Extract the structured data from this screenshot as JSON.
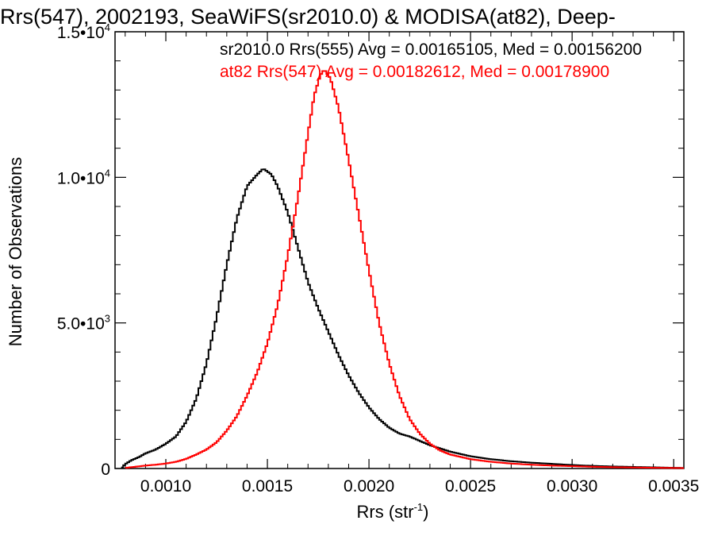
{
  "chart_data": {
    "type": "line",
    "title": "Rrs(547), 2002193, SeaWiFS(sr2010.0) & MODISA(at82), Deep-",
    "xlabel_main": "Rrs (str",
    "xlabel_sup": "-1",
    "xlabel_end": ")",
    "ylabel": "Number of Observations",
    "xlim": [
      0.00075,
      0.00355
    ],
    "ylim": [
      0,
      15000
    ],
    "xticks": [
      {
        "value": 0.001,
        "label": "0.0010"
      },
      {
        "value": 0.0015,
        "label": "0.0015"
      },
      {
        "value": 0.002,
        "label": "0.0020"
      },
      {
        "value": 0.0025,
        "label": "0.0025"
      },
      {
        "value": 0.003,
        "label": "0.0030"
      },
      {
        "value": 0.0035,
        "label": "0.0035"
      }
    ],
    "yticks": [
      {
        "value": 0,
        "mant": "0",
        "exp": ""
      },
      {
        "value": 5000,
        "mant": "5.0•10",
        "exp": "3"
      },
      {
        "value": 10000,
        "mant": "1.0•10",
        "exp": "4"
      },
      {
        "value": 15000,
        "mant": "1.5•10",
        "exp": "4"
      }
    ],
    "series": [
      {
        "name": "sr2010.0 Rrs(555) Avg = 0.00165105, Med = 0.00156200",
        "color": "#000000",
        "points": [
          [
            0.00078,
            0
          ],
          [
            0.0008,
            150
          ],
          [
            0.00083,
            280
          ],
          [
            0.00087,
            400
          ],
          [
            0.0009,
            520
          ],
          [
            0.00095,
            650
          ],
          [
            0.001,
            850
          ],
          [
            0.00105,
            1100
          ],
          [
            0.0011,
            1600
          ],
          [
            0.00115,
            2400
          ],
          [
            0.0012,
            3600
          ],
          [
            0.00125,
            5200
          ],
          [
            0.0013,
            7000
          ],
          [
            0.00135,
            8600
          ],
          [
            0.0014,
            9700
          ],
          [
            0.00145,
            10100
          ],
          [
            0.00148,
            10300
          ],
          [
            0.00152,
            10100
          ],
          [
            0.00155,
            9700
          ],
          [
            0.0016,
            8800
          ],
          [
            0.00165,
            7600
          ],
          [
            0.0017,
            6400
          ],
          [
            0.00175,
            5500
          ],
          [
            0.0018,
            4700
          ],
          [
            0.00185,
            3900
          ],
          [
            0.0019,
            3200
          ],
          [
            0.00195,
            2600
          ],
          [
            0.002,
            2100
          ],
          [
            0.00205,
            1700
          ],
          [
            0.0021,
            1400
          ],
          [
            0.00215,
            1200
          ],
          [
            0.0022,
            1100
          ],
          [
            0.00225,
            950
          ],
          [
            0.0023,
            800
          ],
          [
            0.0024,
            580
          ],
          [
            0.0025,
            420
          ],
          [
            0.0026,
            320
          ],
          [
            0.0027,
            250
          ],
          [
            0.0028,
            200
          ],
          [
            0.0029,
            160
          ],
          [
            0.003,
            120
          ],
          [
            0.0031,
            90
          ],
          [
            0.0032,
            70
          ],
          [
            0.0033,
            55
          ],
          [
            0.0034,
            40
          ],
          [
            0.0035,
            25
          ],
          [
            0.00355,
            20
          ]
        ]
      },
      {
        "name": "at82 Rrs(547) Avg = 0.00182612, Med = 0.00178900",
        "color": "#ff0000",
        "points": [
          [
            0.0008,
            20
          ],
          [
            0.00085,
            60
          ],
          [
            0.0009,
            100
          ],
          [
            0.00095,
            130
          ],
          [
            0.001,
            170
          ],
          [
            0.00105,
            230
          ],
          [
            0.0011,
            330
          ],
          [
            0.00115,
            480
          ],
          [
            0.0012,
            650
          ],
          [
            0.00125,
            900
          ],
          [
            0.0013,
            1300
          ],
          [
            0.00135,
            1800
          ],
          [
            0.0014,
            2500
          ],
          [
            0.00145,
            3300
          ],
          [
            0.0015,
            4300
          ],
          [
            0.00155,
            5600
          ],
          [
            0.0016,
            7300
          ],
          [
            0.00165,
            9300
          ],
          [
            0.0017,
            11500
          ],
          [
            0.00173,
            12800
          ],
          [
            0.00176,
            13500
          ],
          [
            0.00178,
            13700
          ],
          [
            0.00181,
            13400
          ],
          [
            0.00185,
            12400
          ],
          [
            0.0019,
            10600
          ],
          [
            0.00195,
            8700
          ],
          [
            0.002,
            6800
          ],
          [
            0.00205,
            5000
          ],
          [
            0.0021,
            3600
          ],
          [
            0.00215,
            2500
          ],
          [
            0.0022,
            1700
          ],
          [
            0.00225,
            1200
          ],
          [
            0.0023,
            850
          ],
          [
            0.00235,
            620
          ],
          [
            0.0024,
            480
          ],
          [
            0.0025,
            320
          ],
          [
            0.0026,
            230
          ],
          [
            0.0027,
            170
          ],
          [
            0.0028,
            130
          ],
          [
            0.0029,
            100
          ],
          [
            0.003,
            80
          ],
          [
            0.0031,
            60
          ],
          [
            0.0032,
            45
          ],
          [
            0.0033,
            35
          ],
          [
            0.0034,
            25
          ],
          [
            0.0035,
            18
          ],
          [
            0.00355,
            15
          ]
        ]
      }
    ],
    "legend_position": "top-right",
    "grid": false
  }
}
